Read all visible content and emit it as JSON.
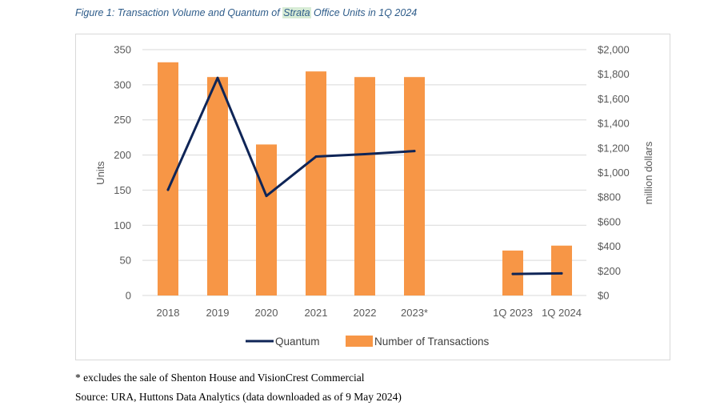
{
  "figure": {
    "title_pre": "Figure 1: Transaction Volume and Quantum of ",
    "title_highlight": "Strata",
    "title_post": " Office Units in 1Q 2024"
  },
  "chart_data": {
    "type": "bar",
    "categories": [
      "2018",
      "2019",
      "2020",
      "2021",
      "2022",
      "2023*",
      "1Q 2023",
      "1Q 2024"
    ],
    "series": [
      {
        "name": "Number of Transactions",
        "kind": "bar",
        "axis": "left",
        "color": "#f79646",
        "values": [
          332,
          311,
          215,
          319,
          311,
          311,
          64,
          71
        ]
      },
      {
        "name": "Quantum",
        "kind": "line",
        "axis": "right",
        "color": "#0f2557",
        "segments": [
          {
            "categories": [
              "2018",
              "2019",
              "2020",
              "2021",
              "2022",
              "2023*"
            ],
            "values": [
              860,
              1770,
              810,
              1130,
              1150,
              1175
            ]
          },
          {
            "categories": [
              "1Q 2023",
              "1Q 2024"
            ],
            "values": [
              175,
              180
            ]
          }
        ]
      }
    ],
    "ylabel": "Units",
    "ylim": [
      0,
      350
    ],
    "yticks": [
      "0",
      "50",
      "100",
      "150",
      "200",
      "250",
      "300",
      "350"
    ],
    "y2label": "million dollars",
    "y2lim": [
      0,
      2000
    ],
    "y2ticks": [
      "$0",
      "$200",
      "$400",
      "$600",
      "$800",
      "$1,000",
      "$1,200",
      "$1,400",
      "$1,600",
      "$1,800",
      "$2,000"
    ],
    "legend": {
      "placement": "bottom",
      "items": [
        "Quantum",
        "Number of Transactions"
      ]
    },
    "grid": true
  },
  "notes": {
    "footnote": "* excludes the sale of Shenton House and VisionCrest Commercial",
    "source": "Source: URA, Huttons Data Analytics (data downloaded as of 9 May 2024)"
  }
}
